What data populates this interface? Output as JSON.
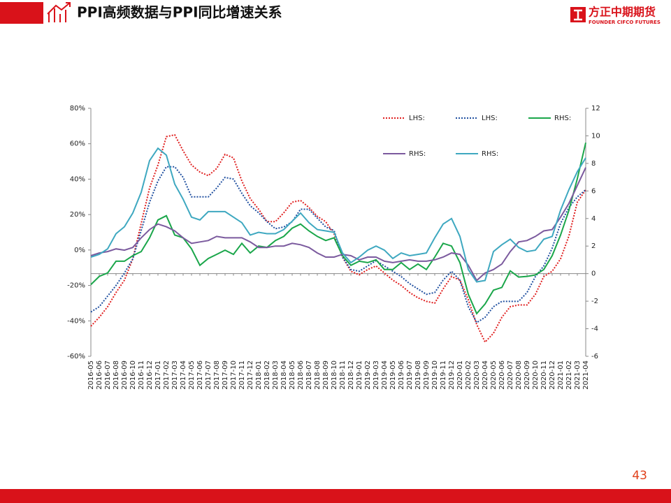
{
  "header": {
    "title": "PPI高频数据与PPI同比增速关系",
    "logo": "方正中期期货",
    "logo_english": "FOUNDER CIFCO FUTURES"
  },
  "page_number": "43",
  "chart_data": {
    "type": "line",
    "categories": [
      "2016-05",
      "2016-06",
      "2016-07",
      "2016-08",
      "2016-09",
      "2016-10",
      "2016-11",
      "2016-12",
      "2017-01",
      "2017-02",
      "2017-03",
      "2017-04",
      "2017-05",
      "2017-06",
      "2017-07",
      "2017-08",
      "2017-09",
      "2017-10",
      "2017-11",
      "2017-12",
      "2018-01",
      "2018-02",
      "2018-03",
      "2018-04",
      "2018-05",
      "2018-06",
      "2018-07",
      "2018-08",
      "2018-09",
      "2018-10",
      "2018-11",
      "2018-12",
      "2019-01",
      "2019-02",
      "2019-03",
      "2019-04",
      "2019-05",
      "2019-06",
      "2019-07",
      "2019-08",
      "2019-09",
      "2019-10",
      "2019-11",
      "2019-12",
      "2020-01",
      "2020-02",
      "2020-03",
      "2020-04",
      "2020-05",
      "2020-06",
      "2020-07",
      "2020-08",
      "2020-09",
      "2020-10",
      "2020-11",
      "2020-12",
      "2021-01",
      "2021-02",
      "2021-03",
      "2021-04"
    ],
    "ylim": [
      -60,
      80
    ],
    "yticks": [
      {
        "value": -60,
        "label": "-60%"
      },
      {
        "value": -40,
        "label": "-40%"
      },
      {
        "value": -20,
        "label": "-20%"
      },
      {
        "value": 0,
        "label": "0%"
      },
      {
        "value": 20,
        "label": "20%"
      },
      {
        "value": 40,
        "label": "40%"
      },
      {
        "value": 60,
        "label": "60%"
      },
      {
        "value": 80,
        "label": "80%"
      }
    ],
    "y2lim": [
      -6,
      12
    ],
    "y2ticks": [
      -6,
      -4,
      -2,
      0,
      2,
      4,
      6,
      8,
      10,
      12
    ],
    "series": [
      {
        "name": "LHS:",
        "color": "#e02020",
        "style": "dotted",
        "values": [
          -43,
          -38,
          -32,
          -24,
          -17,
          -5,
          15,
          35,
          48,
          64,
          65,
          56,
          48,
          44,
          42,
          46,
          54,
          52,
          39,
          29,
          23,
          16,
          16,
          21,
          27,
          28,
          24,
          19,
          16,
          9,
          -4,
          -12,
          -14,
          -11,
          -9,
          -13,
          -17,
          -20,
          -24,
          -27,
          -29,
          -30,
          -22,
          -15,
          -17,
          -28,
          -42,
          -52,
          -47,
          -38,
          -32,
          -31,
          -31,
          -25,
          -15,
          -12,
          -5,
          8,
          27,
          34
        ]
      },
      {
        "name": "LHS:",
        "color": "#2050a0",
        "style": "dotted",
        "values": [
          -35,
          -32,
          -26,
          -20,
          -13,
          -5,
          11,
          27,
          39,
          47,
          47,
          41,
          30,
          30,
          30,
          35,
          41,
          40,
          32,
          25,
          21,
          16,
          12,
          13,
          16,
          23,
          23,
          18,
          13,
          11,
          -4,
          -11,
          -12,
          -9,
          -6,
          -9,
          -12,
          -15,
          -19,
          -22,
          -25,
          -24,
          -17,
          -12,
          -17,
          -32,
          -41,
          -38,
          -32,
          -29,
          -29,
          -29,
          -24,
          -15,
          -9,
          1,
          15,
          24,
          30,
          34
        ]
      },
      {
        "name": "RHS:",
        "color": "#1aa64a",
        "style": "solid",
        "axis": "y2",
        "values": [
          -0.8,
          -0.2,
          0.05,
          0.9,
          0.9,
          1.3,
          1.6,
          2.6,
          3.9,
          4.2,
          2.8,
          2.6,
          1.8,
          0.6,
          1.1,
          1.4,
          1.7,
          1.4,
          2.2,
          1.5,
          2.0,
          1.9,
          2.4,
          2.7,
          3.3,
          3.6,
          3.1,
          2.7,
          2.4,
          2.6,
          1.3,
          0.6,
          0.9,
          0.8,
          1.0,
          0.3,
          0.3,
          0.8,
          0.3,
          0.7,
          0.3,
          1.2,
          2.2,
          2.0,
          0.8,
          -1.5,
          -2.9,
          -2.2,
          -1.2,
          -1.0,
          0.2,
          -0.25,
          -0.2,
          -0.1,
          0.3,
          1.3,
          2.8,
          4.6,
          6.9,
          9.5
        ]
      },
      {
        "name": "RHS:",
        "color": "#7b5a9e",
        "style": "solid",
        "axis": "y2",
        "values": [
          1.3,
          1.5,
          1.6,
          1.8,
          1.7,
          1.9,
          2.6,
          3.2,
          3.6,
          3.4,
          3.1,
          2.6,
          2.2,
          2.3,
          2.4,
          2.7,
          2.6,
          2.6,
          2.6,
          2.3,
          1.9,
          1.9,
          2.0,
          2.0,
          2.2,
          2.1,
          1.9,
          1.5,
          1.2,
          1.2,
          1.4,
          1.3,
          1.0,
          1.2,
          1.2,
          0.9,
          0.8,
          0.9,
          1.0,
          0.9,
          0.9,
          1.0,
          1.2,
          1.5,
          1.4,
          0.6,
          -0.5,
          0.05,
          0.3,
          0.7,
          1.6,
          2.3,
          2.4,
          2.7,
          3.1,
          3.2,
          4.1,
          5.1,
          6.4,
          7.7
        ]
      },
      {
        "name": "RHS:",
        "color": "#3ea8c0",
        "style": "solid",
        "axis": "y2",
        "values": [
          1.2,
          1.4,
          1.8,
          2.9,
          3.4,
          4.4,
          5.9,
          8.2,
          9.1,
          8.6,
          6.5,
          5.4,
          4.1,
          3.9,
          4.5,
          4.5,
          4.5,
          4.1,
          3.7,
          2.8,
          3.0,
          2.9,
          2.9,
          3.2,
          3.8,
          4.4,
          3.7,
          3.2,
          3.1,
          3.0,
          1.5,
          0.8,
          1.2,
          1.7,
          2.0,
          1.7,
          1.1,
          1.5,
          1.3,
          1.4,
          1.5,
          2.6,
          3.6,
          4.0,
          2.7,
          0.3,
          -0.6,
          -0.5,
          1.6,
          2.1,
          2.5,
          1.9,
          1.6,
          1.7,
          2.5,
          2.7,
          4.6,
          6.1,
          7.4,
          8.4
        ]
      }
    ]
  }
}
